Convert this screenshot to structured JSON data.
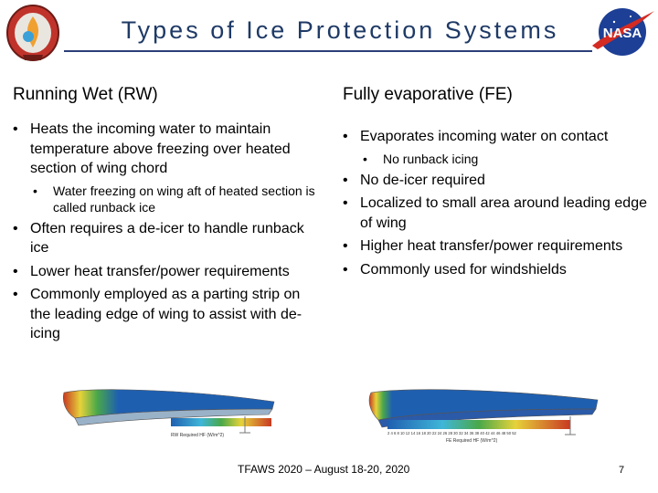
{
  "slide": {
    "title": "Types of Ice Protection Systems",
    "footer": "TFAWS 2020 – August 18-20, 2020",
    "page_number": "7"
  },
  "left_column": {
    "heading": "Running Wet (RW)",
    "bullets": [
      "Heats the incoming water to maintain temperature above freezing over heated section of wing chord",
      "Water freezing on wing aft of heated section is called runback ice",
      "Often requires a de-icer to handle runback ice",
      "Lower heat transfer/power requirements",
      "Commonly employed as a parting strip on the leading edge of wing to assist with de-icing"
    ]
  },
  "right_column": {
    "heading": "Fully evaporative (FE)",
    "bullets": [
      "Evaporates incoming water on contact",
      "No runback icing",
      "No de-icer required",
      "Localized to small area around leading edge of wing",
      "Higher heat transfer/power requirements",
      "Commonly used for windshields"
    ]
  },
  "figures": {
    "rw_caption": "RW Required HF (W/m^2)",
    "fe_caption": "FE Required HF (W/m^2)",
    "fe_scale_ticks": "2 4 6 8 10 12 14 16 18 20 22 24 26 28 30 32 34 36 38 40 42 44 46 48 50 52",
    "colors": {
      "blue": "#1f5fb0",
      "yellow": "#e6d23a",
      "red": "#c83a22",
      "green": "#4aa84a",
      "cyan": "#3fb6d8"
    }
  },
  "logos": {
    "left_icon": "tfaws-mission-patch-logo",
    "right_icon": "nasa-meatball-logo"
  }
}
